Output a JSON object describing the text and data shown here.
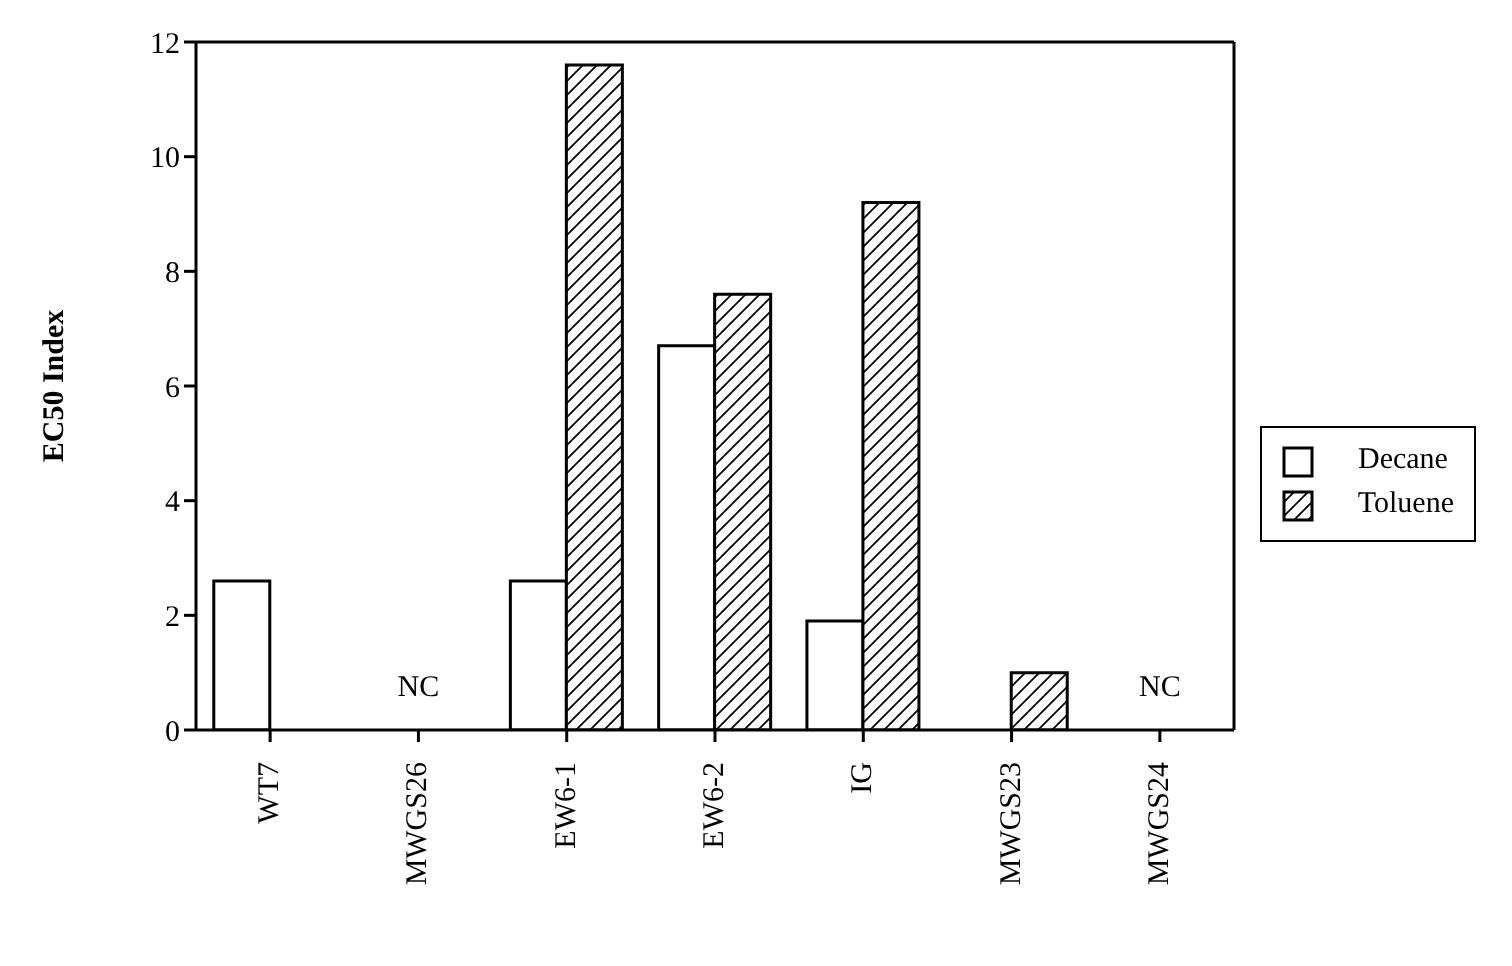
{
  "chart_data": {
    "type": "bar",
    "ylabel": "EC50  Index",
    "categories": [
      "WT7",
      "MWGS26",
      "EW6-1",
      "EW6-2",
      "IG",
      "MWGS23",
      "MWGS24"
    ],
    "series": [
      {
        "name": "Decane",
        "color": "#ffffff",
        "values": [
          2.6,
          null,
          2.6,
          6.7,
          1.9,
          null,
          null
        ]
      },
      {
        "name": "Toluene",
        "color": "#000000",
        "values": [
          null,
          null,
          11.6,
          7.6,
          9.2,
          1.0,
          null
        ]
      }
    ],
    "ylim": [
      0,
      12
    ],
    "yticks": [
      0,
      2,
      4,
      6,
      8,
      10,
      12
    ],
    "grid": false,
    "legend": "right",
    "annotations": [
      "NC",
      "NC"
    ]
  }
}
